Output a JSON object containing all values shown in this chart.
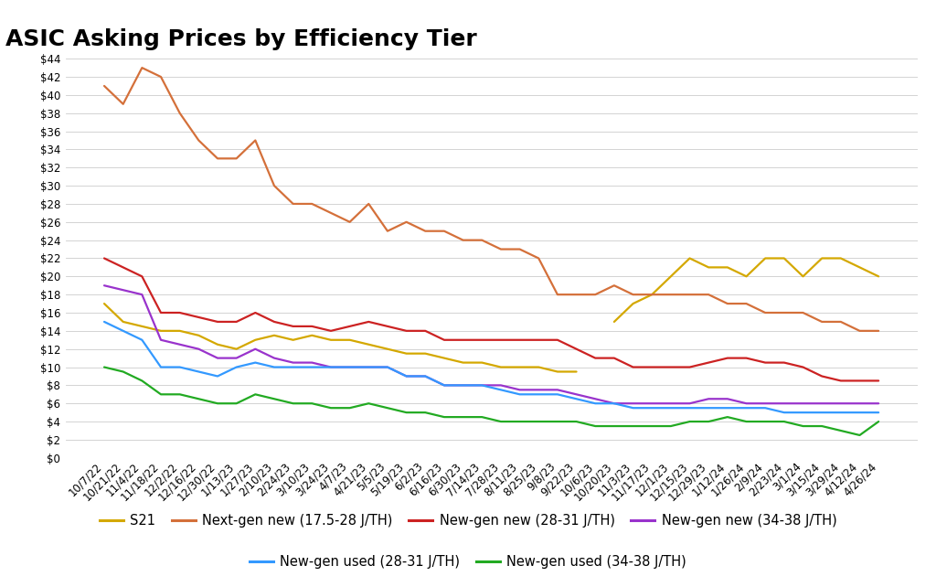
{
  "title": "ASIC Asking Prices by Efficiency Tier",
  "ylim": [
    0,
    44
  ],
  "yticks": [
    0,
    2,
    4,
    6,
    8,
    10,
    12,
    14,
    16,
    18,
    20,
    22,
    24,
    26,
    28,
    30,
    32,
    34,
    36,
    38,
    40,
    42,
    44
  ],
  "x_labels": [
    "10/7/22",
    "10/21/22",
    "11/4/22",
    "11/18/22",
    "12/2/22",
    "12/16/22",
    "12/30/22",
    "1/13/23",
    "1/27/23",
    "2/10/23",
    "2/24/23",
    "3/10/23",
    "3/24/23",
    "4/7/23",
    "4/21/23",
    "5/5/23",
    "5/19/23",
    "6/2/23",
    "6/16/23",
    "6/30/23",
    "7/14/23",
    "7/28/23",
    "8/11/23",
    "8/25/23",
    "9/8/23",
    "9/22/23",
    "10/6/23",
    "10/20/23",
    "11/3/23",
    "11/17/23",
    "12/1/23",
    "12/15/23",
    "12/29/23",
    "1/12/24",
    "1/26/24",
    "2/9/24",
    "2/23/24",
    "3/1/24",
    "3/15/24",
    "3/29/24",
    "4/12/24",
    "4/26/24"
  ],
  "series": [
    {
      "name": "S21",
      "color": "#d4a800",
      "linewidth": 1.6,
      "values": [
        17,
        15,
        14.5,
        14,
        14,
        13.5,
        12.5,
        12,
        13,
        13.5,
        13,
        13.5,
        13,
        13,
        12.5,
        12,
        11.5,
        11.5,
        11,
        10.5,
        10.5,
        10,
        10,
        10,
        9.5,
        9.5,
        null,
        15,
        17,
        18,
        20,
        22,
        21,
        21,
        20,
        22,
        22,
        20,
        22,
        22,
        21,
        20
      ]
    },
    {
      "name": "Next-gen new (17.5-28 J/TH)",
      "color": "#d4703a",
      "linewidth": 1.6,
      "values": [
        41,
        39,
        43,
        42,
        38,
        35,
        33,
        33,
        35,
        30,
        28,
        28,
        27,
        26,
        28,
        25,
        26,
        25,
        25,
        24,
        24,
        23,
        23,
        22,
        18,
        18,
        18,
        19,
        18,
        18,
        18,
        18,
        18,
        17,
        17,
        16,
        16,
        16,
        15,
        15,
        14,
        14
      ]
    },
    {
      "name": "New-gen new (28-31 J/TH)",
      "color": "#cc2222",
      "linewidth": 1.6,
      "values": [
        22,
        21,
        20,
        16,
        16,
        15.5,
        15,
        15,
        16,
        15,
        14.5,
        14.5,
        14,
        14.5,
        15,
        14.5,
        14,
        14,
        13,
        13,
        13,
        13,
        13,
        13,
        13,
        12,
        11,
        11,
        10,
        10,
        10,
        10,
        10.5,
        11,
        11,
        10.5,
        10.5,
        10,
        9,
        8.5,
        8.5,
        8.5
      ]
    },
    {
      "name": "New-gen new (34-38 J/TH)",
      "color": "#9933cc",
      "linewidth": 1.6,
      "values": [
        19,
        18.5,
        18,
        13,
        12.5,
        12,
        11,
        11,
        12,
        11,
        10.5,
        10.5,
        10,
        10,
        10,
        10,
        9,
        9,
        8,
        8,
        8,
        8,
        7.5,
        7.5,
        7.5,
        7,
        6.5,
        6,
        6,
        6,
        6,
        6,
        6.5,
        6.5,
        6,
        6,
        6,
        6,
        6,
        6,
        6,
        6
      ]
    },
    {
      "name": "New-gen used (28-31 J/TH)",
      "color": "#3399ff",
      "linewidth": 1.6,
      "values": [
        15,
        14,
        13,
        10,
        10,
        9.5,
        9,
        10,
        10.5,
        10,
        10,
        10,
        10,
        10,
        10,
        10,
        9,
        9,
        8,
        8,
        8,
        7.5,
        7,
        7,
        7,
        6.5,
        6,
        6,
        5.5,
        5.5,
        5.5,
        5.5,
        5.5,
        5.5,
        5.5,
        5.5,
        5,
        5,
        5,
        5,
        5,
        5
      ]
    },
    {
      "name": "New-gen used (34-38 J/TH)",
      "color": "#22aa22",
      "linewidth": 1.6,
      "values": [
        10,
        9.5,
        8.5,
        7,
        7,
        6.5,
        6,
        6,
        7,
        6.5,
        6,
        6,
        5.5,
        5.5,
        6,
        5.5,
        5,
        5,
        4.5,
        4.5,
        4.5,
        4,
        4,
        4,
        4,
        4,
        3.5,
        3.5,
        3.5,
        3.5,
        3.5,
        4,
        4,
        4.5,
        4,
        4,
        4,
        3.5,
        3.5,
        3,
        2.5,
        4
      ]
    }
  ],
  "legend_row1": [
    {
      "label": "S21",
      "color": "#d4a800"
    },
    {
      "label": "Next-gen new (17.5-28 J/TH)",
      "color": "#d4703a"
    },
    {
      "label": "New-gen new (28-31 J/TH)",
      "color": "#cc2222"
    },
    {
      "label": "New-gen new (34-38 J/TH)",
      "color": "#9933cc"
    }
  ],
  "legend_row2": [
    {
      "label": "New-gen used (28-31 J/TH)",
      "color": "#3399ff"
    },
    {
      "label": "New-gen used (34-38 J/TH)",
      "color": "#22aa22"
    }
  ],
  "background_color": "#ffffff",
  "grid_color": "#cccccc",
  "title_fontsize": 18,
  "tick_fontsize": 8.5,
  "legend_fontsize": 10.5
}
